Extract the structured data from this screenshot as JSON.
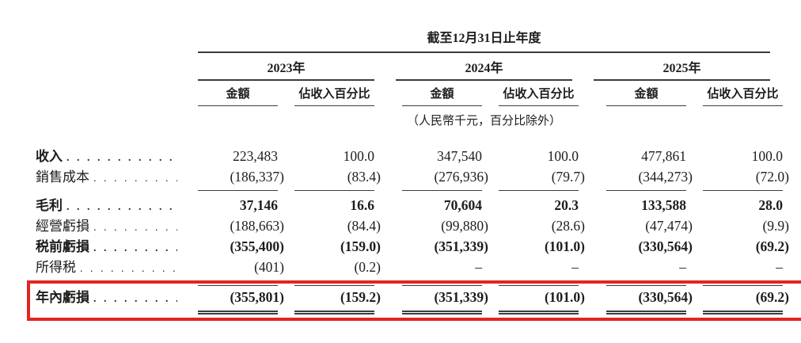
{
  "table": {
    "period_title": "截至12月31日止年度",
    "unit_note": "（人民幣千元，百分比除外）",
    "dot_leader": ". . . . . . . . . . . . . . . . . . . . . . . . . . . . . . . . . . . .",
    "highlight_color": "#e2251f",
    "year_groups": [
      {
        "year": "2023年",
        "amount_label": "金額",
        "pct_label": "佔收入百分比"
      },
      {
        "year": "2024年",
        "amount_label": "金額",
        "pct_label": "佔收入百分比"
      },
      {
        "year": "2025年",
        "amount_label": "金額",
        "pct_label": "佔收入百分比"
      }
    ],
    "rows": [
      {
        "label": "收入",
        "values": [
          "223,483",
          "100.0",
          "347,540",
          "100.0",
          "477,861",
          "100.0"
        ]
      },
      {
        "label": "銷售成本",
        "values": [
          "(186,337)",
          "(83.4)",
          "(276,936)",
          "(79.7)",
          "(344,273)",
          "(72.0)"
        ]
      },
      {
        "label": "毛利",
        "values": [
          "37,146",
          "16.6",
          "70,604",
          "20.3",
          "133,588",
          "28.0"
        ]
      },
      {
        "label": "經營虧損",
        "values": [
          "(188,663)",
          "(84.4)",
          "(99,880)",
          "(28.6)",
          "(47,474)",
          "(9.9)"
        ]
      },
      {
        "label": "税前虧損",
        "values": [
          "(355,400)",
          "(159.0)",
          "(351,339)",
          "(101.0)",
          "(330,564)",
          "(69.2)"
        ]
      },
      {
        "label": "所得税",
        "values": [
          "(401)",
          "(0.2)",
          "–",
          "–",
          "–",
          "–"
        ]
      },
      {
        "label": "年內虧損",
        "values": [
          "(355,801)",
          "(159.2)",
          "(351,339)",
          "(101.0)",
          "(330,564)",
          "(69.2)"
        ]
      }
    ]
  }
}
